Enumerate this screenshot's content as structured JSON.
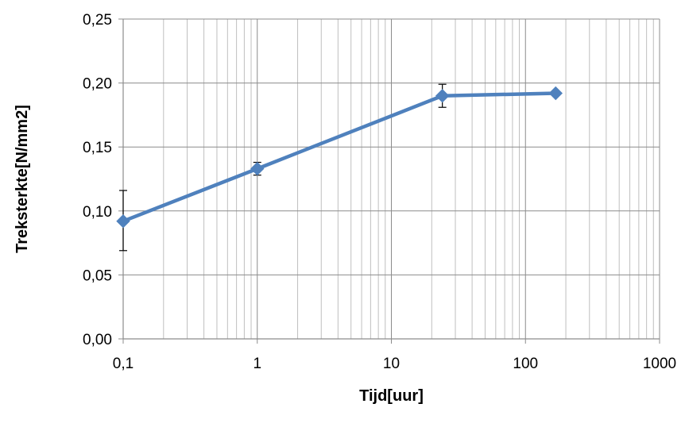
{
  "chart_data": {
    "type": "line",
    "title": "",
    "xlabel": "Tijd[uur]",
    "ylabel": "Treksterkte[N/mm2]",
    "xscale": "log",
    "xlim": [
      0.1,
      1000
    ],
    "ylim": [
      0,
      0.25
    ],
    "x_ticks": [
      0.1,
      1,
      10,
      100,
      1000
    ],
    "x_tick_labels": [
      "0,1",
      "1",
      "10",
      "100",
      "1000"
    ],
    "y_ticks": [
      0,
      0.05,
      0.1,
      0.15,
      0.2,
      0.25
    ],
    "y_tick_labels": [
      "0,00",
      "0,05",
      "0,10",
      "0,15",
      "0,20",
      "0,25"
    ],
    "grid": true,
    "legend": "none",
    "marker": "diamond",
    "series": [
      {
        "color": "#4F81BD",
        "x": [
          0.1,
          1,
          24,
          168
        ],
        "y": [
          0.092,
          0.133,
          0.19,
          0.192
        ],
        "error_low": [
          0.069,
          0.128,
          0.181,
          null
        ],
        "error_high": [
          0.116,
          0.138,
          0.199,
          null
        ]
      }
    ]
  }
}
